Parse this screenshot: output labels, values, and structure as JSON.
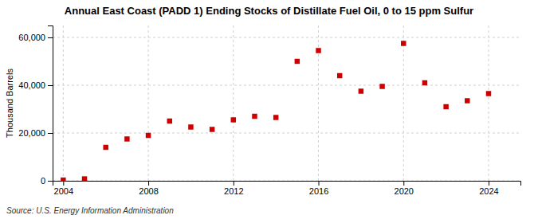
{
  "chart_data": {
    "type": "scatter",
    "title": "Annual East Coast (PADD 1) Ending Stocks of Distillate Fuel Oil, 0 to 15 ppm Sulfur",
    "ylabel": "Thousand Barrels",
    "source": "Source: U.S. Energy Information Administration",
    "x": [
      2004,
      2005,
      2006,
      2007,
      2008,
      2009,
      2010,
      2011,
      2012,
      2013,
      2014,
      2015,
      2016,
      2017,
      2018,
      2019,
      2020,
      2021,
      2022,
      2023,
      2024
    ],
    "values": [
      300,
      800,
      14000,
      17500,
      19000,
      25000,
      22500,
      21500,
      25500,
      27000,
      26500,
      50000,
      54500,
      44000,
      37500,
      39500,
      57500,
      41000,
      31000,
      33500,
      36500
    ],
    "color": "#cc0000",
    "marker": "square",
    "xlim": [
      2003.5,
      2025.5
    ],
    "ylim": [
      0,
      65000
    ],
    "xticks": [
      2004,
      2008,
      2012,
      2016,
      2020,
      2024
    ],
    "yticks": [
      0,
      {
        "value": 20000,
        "label": "20,000"
      },
      {
        "value": 40000,
        "label": "40,000"
      },
      {
        "value": 60000,
        "label": "60,000"
      }
    ],
    "grid": true
  }
}
